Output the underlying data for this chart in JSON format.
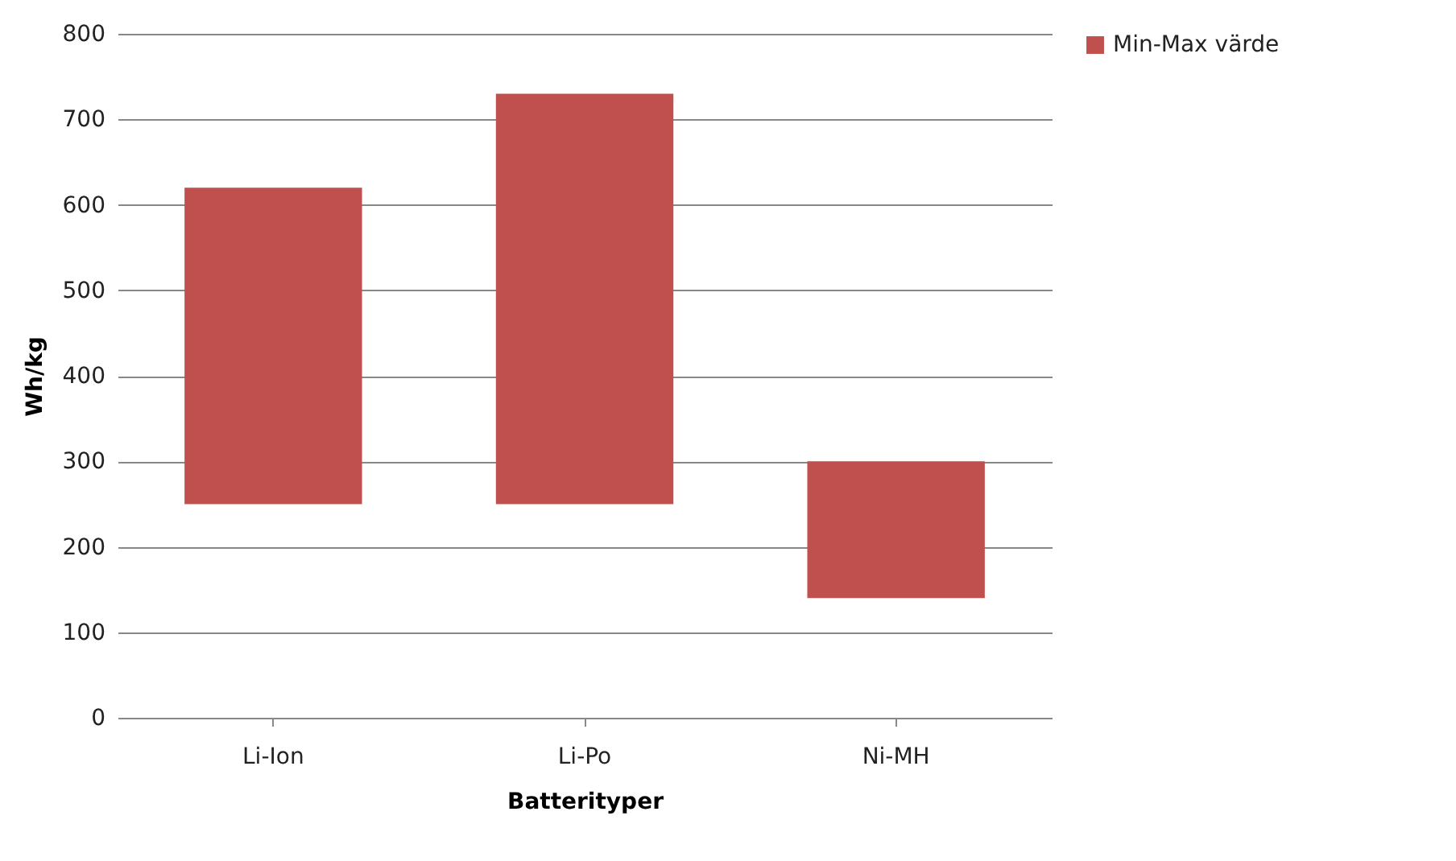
{
  "chart_data": {
    "type": "bar",
    "xlabel": "Batterityper",
    "ylabel": "Wh/kg",
    "categories": [
      "Li-Ion",
      "Li-Po",
      "Ni-MH"
    ],
    "series": [
      {
        "name": "Min-Max värde",
        "color": "#c0504d",
        "values": [
          370,
          480,
          160
        ],
        "base": [
          250,
          250,
          140
        ]
      }
    ],
    "ylim": [
      0,
      800
    ],
    "yticks": [
      0,
      100,
      200,
      300,
      400,
      500,
      600,
      700,
      800
    ],
    "grid": "y",
    "legend": "right"
  }
}
